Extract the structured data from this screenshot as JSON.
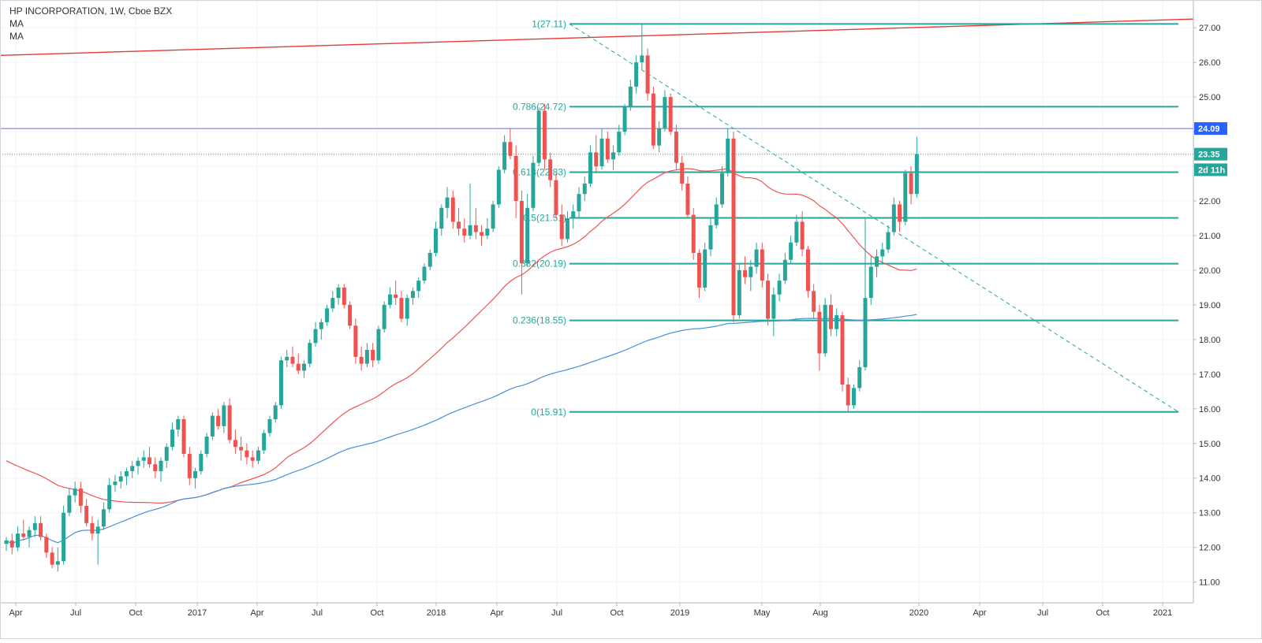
{
  "chart_data": {
    "type": "candlestick",
    "title": "HP INCORPORATION, 1W, Cboe BZX",
    "indicators": [
      "MA",
      "MA"
    ],
    "y_axis": {
      "ticks": [
        "11.00",
        "12.00",
        "13.00",
        "14.00",
        "15.00",
        "16.00",
        "17.00",
        "18.00",
        "19.00",
        "20.00",
        "21.00",
        "22.00",
        "23.00",
        "24.00",
        "25.00",
        "26.00",
        "27.00"
      ],
      "range": [
        10.4,
        27.8
      ]
    },
    "x_axis": {
      "ticks": [
        "Apr",
        "Jul",
        "Oct",
        "2017",
        "Apr",
        "Jul",
        "Oct",
        "2018",
        "Apr",
        "Jul",
        "Oct",
        "2019",
        "May",
        "Aug",
        "2020",
        "Apr",
        "Jul",
        "Oct",
        "2021"
      ]
    },
    "price_tags": [
      {
        "value": 24.09,
        "label": "24.09",
        "color": "#2962ff"
      },
      {
        "value": 23.35,
        "label": "23.35",
        "color": "#26a69a"
      },
      {
        "value": 22.9,
        "label": "2d 11h",
        "color": "#26a69a"
      }
    ],
    "fib_levels": [
      {
        "label": "1(27.11)",
        "value": 27.11
      },
      {
        "label": "0.786(24.72)",
        "value": 24.72
      },
      {
        "label": "0.618(22.83)",
        "value": 22.83
      },
      {
        "label": "0.5(21.51)",
        "value": 21.51
      },
      {
        "label": "0.382(20.19)",
        "value": 20.19
      },
      {
        "label": "0.236(18.55)",
        "value": 18.55
      },
      {
        "label": "0(15.91)",
        "value": 15.91
      }
    ],
    "colors": {
      "up": "#26a69a",
      "down": "#ef5350",
      "fib": "#26a69a",
      "trend_red": "#e53935",
      "horizontal_blue": "#5b6ee1",
      "ma_red": "#ef5350",
      "ma_blue": "#4a90d9"
    },
    "ohlc_weekly": [
      [
        12.1,
        12.3,
        11.9,
        12.2
      ],
      [
        12.2,
        12.4,
        11.8,
        12.0
      ],
      [
        12.0,
        12.6,
        11.9,
        12.4
      ],
      [
        12.4,
        12.8,
        12.2,
        12.3
      ],
      [
        12.3,
        12.6,
        12.0,
        12.5
      ],
      [
        12.5,
        12.9,
        12.3,
        12.7
      ],
      [
        12.7,
        12.9,
        12.2,
        12.3
      ],
      [
        12.3,
        12.4,
        11.7,
        11.85
      ],
      [
        11.85,
        12.0,
        11.4,
        11.5
      ],
      [
        11.5,
        12.0,
        11.3,
        11.6
      ],
      [
        11.6,
        13.2,
        11.5,
        13.0
      ],
      [
        13.0,
        13.7,
        12.9,
        13.5
      ],
      [
        13.5,
        13.9,
        13.3,
        13.7
      ],
      [
        13.7,
        13.9,
        13.0,
        13.2
      ],
      [
        13.2,
        13.4,
        12.6,
        12.7
      ],
      [
        12.7,
        12.9,
        12.2,
        12.4
      ],
      [
        12.4,
        12.8,
        11.5,
        12.6
      ],
      [
        12.6,
        13.3,
        12.5,
        13.1
      ],
      [
        13.1,
        14.0,
        13.0,
        13.8
      ],
      [
        13.8,
        14.1,
        13.6,
        13.9
      ],
      [
        13.9,
        14.2,
        13.7,
        14.05
      ],
      [
        14.05,
        14.3,
        13.8,
        14.2
      ],
      [
        14.2,
        14.5,
        14.0,
        14.35
      ],
      [
        14.35,
        14.6,
        14.1,
        14.5
      ],
      [
        14.5,
        14.8,
        14.3,
        14.6
      ],
      [
        14.6,
        14.9,
        14.3,
        14.4
      ],
      [
        14.4,
        14.6,
        14.0,
        14.2
      ],
      [
        14.2,
        14.6,
        13.9,
        14.5
      ],
      [
        14.5,
        15.0,
        14.3,
        14.9
      ],
      [
        14.9,
        15.6,
        14.8,
        15.4
      ],
      [
        15.4,
        15.8,
        15.2,
        15.7
      ],
      [
        15.7,
        15.8,
        14.6,
        14.7
      ],
      [
        14.7,
        14.9,
        13.8,
        14.0
      ],
      [
        14.0,
        14.3,
        13.7,
        14.2
      ],
      [
        14.2,
        14.8,
        14.1,
        14.7
      ],
      [
        14.7,
        15.3,
        14.6,
        15.2
      ],
      [
        15.2,
        15.9,
        15.1,
        15.8
      ],
      [
        15.8,
        16.0,
        15.4,
        15.5
      ],
      [
        15.5,
        16.2,
        15.3,
        16.1
      ],
      [
        16.1,
        16.3,
        15.0,
        15.1
      ],
      [
        15.1,
        15.4,
        14.7,
        14.9
      ],
      [
        14.9,
        15.2,
        14.5,
        14.8
      ],
      [
        14.8,
        15.0,
        14.4,
        14.6
      ],
      [
        14.6,
        14.8,
        14.3,
        14.5
      ],
      [
        14.5,
        14.9,
        14.4,
        14.8
      ],
      [
        14.8,
        15.4,
        14.7,
        15.3
      ],
      [
        15.3,
        15.8,
        15.2,
        15.7
      ],
      [
        15.7,
        16.2,
        15.6,
        16.1
      ],
      [
        16.1,
        17.5,
        16.0,
        17.4
      ],
      [
        17.4,
        17.7,
        17.2,
        17.5
      ],
      [
        17.5,
        17.8,
        17.2,
        17.3
      ],
      [
        17.3,
        17.6,
        17.0,
        17.1
      ],
      [
        17.1,
        17.4,
        16.9,
        17.3
      ],
      [
        17.3,
        18.0,
        17.2,
        17.9
      ],
      [
        17.9,
        18.5,
        17.8,
        18.3
      ],
      [
        18.3,
        18.6,
        18.0,
        18.5
      ],
      [
        18.5,
        19.0,
        18.4,
        18.9
      ],
      [
        18.9,
        19.4,
        18.8,
        19.2
      ],
      [
        19.2,
        19.6,
        19.0,
        19.5
      ],
      [
        19.5,
        19.6,
        18.9,
        19.0
      ],
      [
        19.0,
        19.1,
        18.3,
        18.4
      ],
      [
        18.4,
        18.6,
        17.3,
        17.5
      ],
      [
        17.5,
        17.8,
        17.1,
        17.3
      ],
      [
        17.3,
        17.9,
        17.2,
        17.7
      ],
      [
        17.7,
        17.9,
        17.2,
        17.4
      ],
      [
        17.4,
        18.4,
        17.3,
        18.3
      ],
      [
        18.3,
        19.1,
        18.2,
        19.0
      ],
      [
        19.0,
        19.5,
        18.9,
        19.3
      ],
      [
        19.3,
        19.7,
        19.0,
        19.2
      ],
      [
        19.2,
        19.4,
        18.5,
        18.6
      ],
      [
        18.6,
        19.3,
        18.4,
        19.2
      ],
      [
        19.2,
        19.5,
        19.0,
        19.4
      ],
      [
        19.4,
        19.8,
        19.2,
        19.7
      ],
      [
        19.7,
        20.2,
        19.6,
        20.1
      ],
      [
        20.1,
        20.6,
        20.0,
        20.5
      ],
      [
        20.5,
        21.4,
        20.4,
        21.2
      ],
      [
        21.2,
        21.9,
        21.0,
        21.8
      ],
      [
        21.8,
        22.4,
        21.5,
        22.1
      ],
      [
        22.1,
        22.3,
        21.2,
        21.4
      ],
      [
        21.4,
        21.8,
        21.0,
        21.2
      ],
      [
        21.2,
        21.5,
        20.8,
        21.0
      ],
      [
        21.0,
        22.5,
        20.9,
        21.3
      ],
      [
        21.3,
        21.8,
        20.9,
        21.1
      ],
      [
        21.1,
        21.3,
        20.7,
        21.0
      ],
      [
        21.0,
        21.5,
        20.9,
        21.2
      ],
      [
        21.2,
        22.0,
        21.1,
        21.9
      ],
      [
        21.9,
        23.0,
        21.8,
        22.9
      ],
      [
        22.9,
        23.9,
        22.8,
        23.7
      ],
      [
        23.7,
        24.1,
        23.2,
        23.3
      ],
      [
        23.3,
        23.6,
        21.5,
        22.0
      ],
      [
        22.0,
        22.3,
        19.3,
        20.2
      ],
      [
        20.2,
        22.2,
        20.1,
        21.8
      ],
      [
        21.8,
        23.3,
        21.7,
        23.1
      ],
      [
        23.1,
        24.7,
        23.0,
        24.6
      ],
      [
        24.6,
        24.8,
        22.9,
        23.2
      ],
      [
        23.2,
        23.4,
        22.4,
        22.6
      ],
      [
        22.6,
        22.8,
        21.5,
        21.6
      ],
      [
        21.6,
        21.9,
        20.7,
        20.9
      ],
      [
        20.9,
        21.7,
        20.8,
        21.5
      ],
      [
        21.5,
        21.9,
        21.2,
        21.7
      ],
      [
        21.7,
        22.4,
        21.5,
        22.2
      ],
      [
        22.2,
        22.7,
        22.0,
        22.5
      ],
      [
        22.5,
        23.6,
        22.4,
        23.4
      ],
      [
        23.4,
        23.9,
        22.8,
        23.0
      ],
      [
        23.0,
        24.1,
        22.9,
        23.8
      ],
      [
        23.8,
        24.0,
        23.1,
        23.2
      ],
      [
        23.2,
        23.6,
        22.9,
        23.4
      ],
      [
        23.4,
        24.2,
        23.3,
        24.0
      ],
      [
        24.0,
        24.8,
        23.9,
        24.7
      ],
      [
        24.7,
        25.5,
        24.6,
        25.3
      ],
      [
        25.3,
        26.2,
        25.1,
        26.0
      ],
      [
        26.0,
        27.11,
        25.8,
        26.2
      ],
      [
        26.2,
        26.4,
        24.9,
        25.1
      ],
      [
        25.1,
        25.3,
        23.5,
        23.6
      ],
      [
        23.6,
        24.3,
        23.4,
        24.1
      ],
      [
        24.1,
        25.2,
        24.0,
        25.0
      ],
      [
        25.0,
        25.1,
        23.9,
        24.0
      ],
      [
        24.0,
        24.2,
        22.9,
        23.1
      ],
      [
        23.1,
        23.3,
        22.3,
        22.5
      ],
      [
        22.5,
        22.7,
        21.5,
        21.6
      ],
      [
        21.6,
        21.8,
        20.3,
        20.5
      ],
      [
        20.5,
        20.6,
        19.2,
        19.5
      ],
      [
        19.5,
        20.8,
        19.4,
        20.6
      ],
      [
        20.6,
        21.5,
        20.4,
        21.3
      ],
      [
        21.3,
        22.1,
        21.2,
        21.9
      ],
      [
        21.9,
        23.0,
        21.8,
        22.8
      ],
      [
        22.8,
        24.1,
        22.7,
        23.8
      ],
      [
        23.8,
        24.0,
        18.5,
        18.7
      ],
      [
        18.7,
        20.2,
        18.6,
        20.0
      ],
      [
        20.0,
        20.4,
        19.6,
        19.8
      ],
      [
        19.8,
        20.3,
        19.4,
        20.1
      ],
      [
        20.1,
        20.8,
        19.9,
        20.6
      ],
      [
        20.6,
        20.8,
        19.5,
        19.7
      ],
      [
        19.7,
        19.9,
        18.4,
        18.6
      ],
      [
        18.6,
        19.5,
        18.1,
        19.3
      ],
      [
        19.3,
        19.9,
        19.1,
        19.7
      ],
      [
        19.7,
        20.5,
        19.6,
        20.3
      ],
      [
        20.3,
        21.0,
        20.2,
        20.8
      ],
      [
        20.8,
        21.6,
        20.7,
        21.4
      ],
      [
        21.4,
        21.7,
        20.4,
        20.6
      ],
      [
        20.6,
        20.7,
        19.2,
        19.4
      ],
      [
        19.4,
        19.6,
        18.6,
        18.8
      ],
      [
        18.8,
        19.0,
        17.1,
        17.6
      ],
      [
        17.6,
        19.2,
        17.5,
        19.0
      ],
      [
        19.0,
        19.3,
        18.1,
        18.3
      ],
      [
        18.3,
        18.9,
        18.1,
        18.7
      ],
      [
        18.7,
        18.8,
        16.5,
        16.7
      ],
      [
        16.7,
        16.9,
        15.91,
        16.1
      ],
      [
        16.1,
        16.7,
        16.0,
        16.6
      ],
      [
        16.6,
        17.4,
        16.5,
        17.2
      ],
      [
        17.2,
        21.5,
        17.1,
        19.2
      ],
      [
        19.2,
        20.4,
        19.0,
        20.1
      ],
      [
        20.1,
        20.6,
        19.8,
        20.4
      ],
      [
        20.4,
        20.8,
        20.2,
        20.6
      ],
      [
        20.6,
        21.3,
        20.5,
        21.1
      ],
      [
        21.1,
        22.1,
        21.0,
        21.9
      ],
      [
        21.9,
        22.0,
        21.1,
        21.4
      ],
      [
        21.4,
        22.9,
        21.3,
        22.8
      ],
      [
        22.8,
        23.0,
        21.9,
        22.2
      ],
      [
        22.2,
        23.85,
        22.1,
        23.35
      ]
    ]
  }
}
